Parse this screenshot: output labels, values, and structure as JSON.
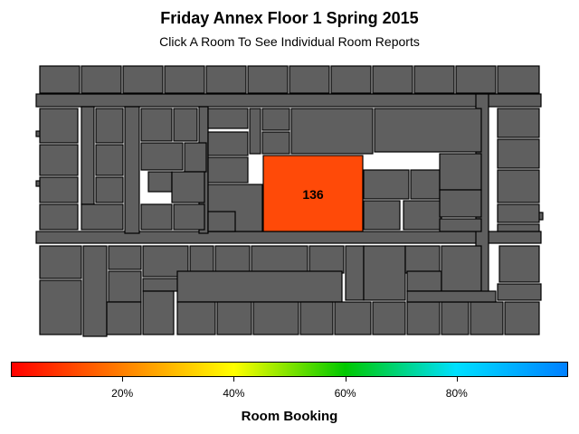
{
  "title": "Friday Annex Floor 1 Spring 2015",
  "subtitle": "Click A Room To See Individual Room Reports",
  "highlighted_room": {
    "label": "136",
    "booking_fraction": 0.18
  },
  "colors": {
    "room_fill": "#5f5f5f",
    "room_stroke": "#000000",
    "highlight_fill": "#ff4a08"
  },
  "legend": {
    "title": "Room Booking",
    "ticks": [
      {
        "label": "20%",
        "value": 0.2
      },
      {
        "label": "40%",
        "value": 0.4
      },
      {
        "label": "60%",
        "value": 0.6
      },
      {
        "label": "80%",
        "value": 0.8
      }
    ],
    "gradient_colors": [
      "#ff0000",
      "#ff8000",
      "#ffff00",
      "#00c800",
      "#00e0ff",
      "#0080ff"
    ]
  }
}
